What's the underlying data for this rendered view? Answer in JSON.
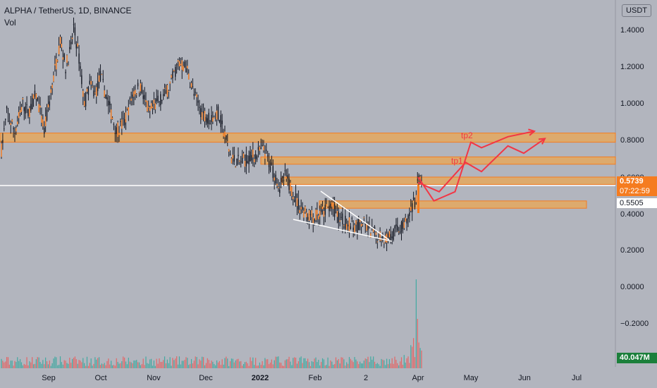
{
  "header": {
    "symbol": "ALPHA / TetherUS, 1D, BINANCE",
    "volume_label": "Vol",
    "currency": "USDT"
  },
  "y_axis": {
    "price_ticks": [
      "1.4000",
      "1.2000",
      "1.0000",
      "0.8000",
      "0.6000",
      "0.4000",
      "0.2000",
      "0.0000",
      "−0.2000"
    ],
    "price_tick_values": [
      1.4,
      1.2,
      1.0,
      0.8,
      0.6,
      0.4,
      0.2,
      0.0,
      -0.2
    ]
  },
  "x_axis": {
    "labels": [
      "Sep",
      "Oct",
      "Nov",
      "Dec",
      "2022",
      "Feb",
      "2",
      "Apr",
      "May",
      "Jun",
      "Jul"
    ],
    "bold_label": "2022"
  },
  "price_labels": {
    "current_price": "0.5739",
    "countdown": "07:22:59",
    "horizontal_line_price": "0.5505",
    "volume_value": "40.047M"
  },
  "annotations": {
    "tp1": "tp1",
    "tp2": "tp2"
  },
  "colors": {
    "background": "#b2b5be",
    "candle_up": "#f57c20",
    "candle_down": "#131722",
    "zone_fill": "#f5a442",
    "zone_border": "#f57c20",
    "projection": "#f23645",
    "trendline": "#ffffff",
    "volume_up": "#26a69a",
    "volume_down": "#ef5350"
  },
  "chart_data": {
    "type": "candlestick",
    "title": "ALPHA / TetherUS, 1D, BINANCE",
    "ylim": [
      -0.2,
      1.45
    ],
    "price_path": [
      [
        0,
        0.75
      ],
      [
        4,
        0.95
      ],
      [
        10,
        0.85
      ],
      [
        16,
        1.0
      ],
      [
        20,
        0.95
      ],
      [
        26,
        1.05
      ],
      [
        32,
        0.85
      ],
      [
        38,
        1.1
      ],
      [
        44,
        1.35
      ],
      [
        48,
        1.2
      ],
      [
        52,
        1.3
      ],
      [
        54,
        1.42
      ],
      [
        58,
        1.25
      ],
      [
        62,
        1.0
      ],
      [
        66,
        1.1
      ],
      [
        70,
        1.05
      ],
      [
        74,
        1.15
      ],
      [
        80,
        1.0
      ],
      [
        86,
        0.85
      ],
      [
        92,
        0.9
      ],
      [
        98,
        1.05
      ],
      [
        104,
        1.1
      ],
      [
        110,
        0.95
      ],
      [
        116,
        1.0
      ],
      [
        122,
        1.05
      ],
      [
        126,
        1.1
      ],
      [
        132,
        1.22
      ],
      [
        138,
        1.2
      ],
      [
        144,
        1.05
      ],
      [
        150,
        0.95
      ],
      [
        156,
        0.92
      ],
      [
        162,
        0.95
      ],
      [
        168,
        0.8
      ],
      [
        172,
        0.7
      ],
      [
        178,
        0.68
      ],
      [
        184,
        0.7
      ],
      [
        190,
        0.72
      ],
      [
        196,
        0.75
      ],
      [
        200,
        0.68
      ],
      [
        204,
        0.62
      ],
      [
        208,
        0.55
      ],
      [
        212,
        0.6
      ],
      [
        216,
        0.55
      ],
      [
        222,
        0.45
      ],
      [
        228,
        0.4
      ],
      [
        234,
        0.38
      ],
      [
        240,
        0.4
      ],
      [
        246,
        0.45
      ],
      [
        252,
        0.38
      ],
      [
        258,
        0.35
      ],
      [
        264,
        0.33
      ],
      [
        270,
        0.35
      ],
      [
        276,
        0.3
      ],
      [
        282,
        0.28
      ],
      [
        288,
        0.27
      ],
      [
        294,
        0.3
      ],
      [
        300,
        0.33
      ],
      [
        306,
        0.4
      ],
      [
        310,
        0.5
      ],
      [
        312,
        0.62
      ],
      [
        314,
        0.57
      ]
    ],
    "resistance_zones": [
      {
        "low": 0.79,
        "high": 0.84
      },
      {
        "low": 0.67,
        "high": 0.71
      },
      {
        "low": 0.56,
        "high": 0.6
      },
      {
        "low": 0.43,
        "high": 0.47
      }
    ],
    "horizontal_line": 0.5505,
    "projection_a": [
      [
        0,
        0.6
      ],
      [
        3,
        0.47
      ],
      [
        7,
        0.52
      ],
      [
        10,
        0.79
      ],
      [
        12,
        0.76
      ],
      [
        17,
        0.82
      ],
      [
        22,
        0.85
      ]
    ],
    "projection_b": [
      [
        0,
        0.57
      ],
      [
        4,
        0.52
      ],
      [
        9,
        0.68
      ],
      [
        12,
        0.63
      ],
      [
        17,
        0.77
      ],
      [
        20,
        0.73
      ],
      [
        24,
        0.81
      ]
    ],
    "volume_spike_max": 60
  }
}
